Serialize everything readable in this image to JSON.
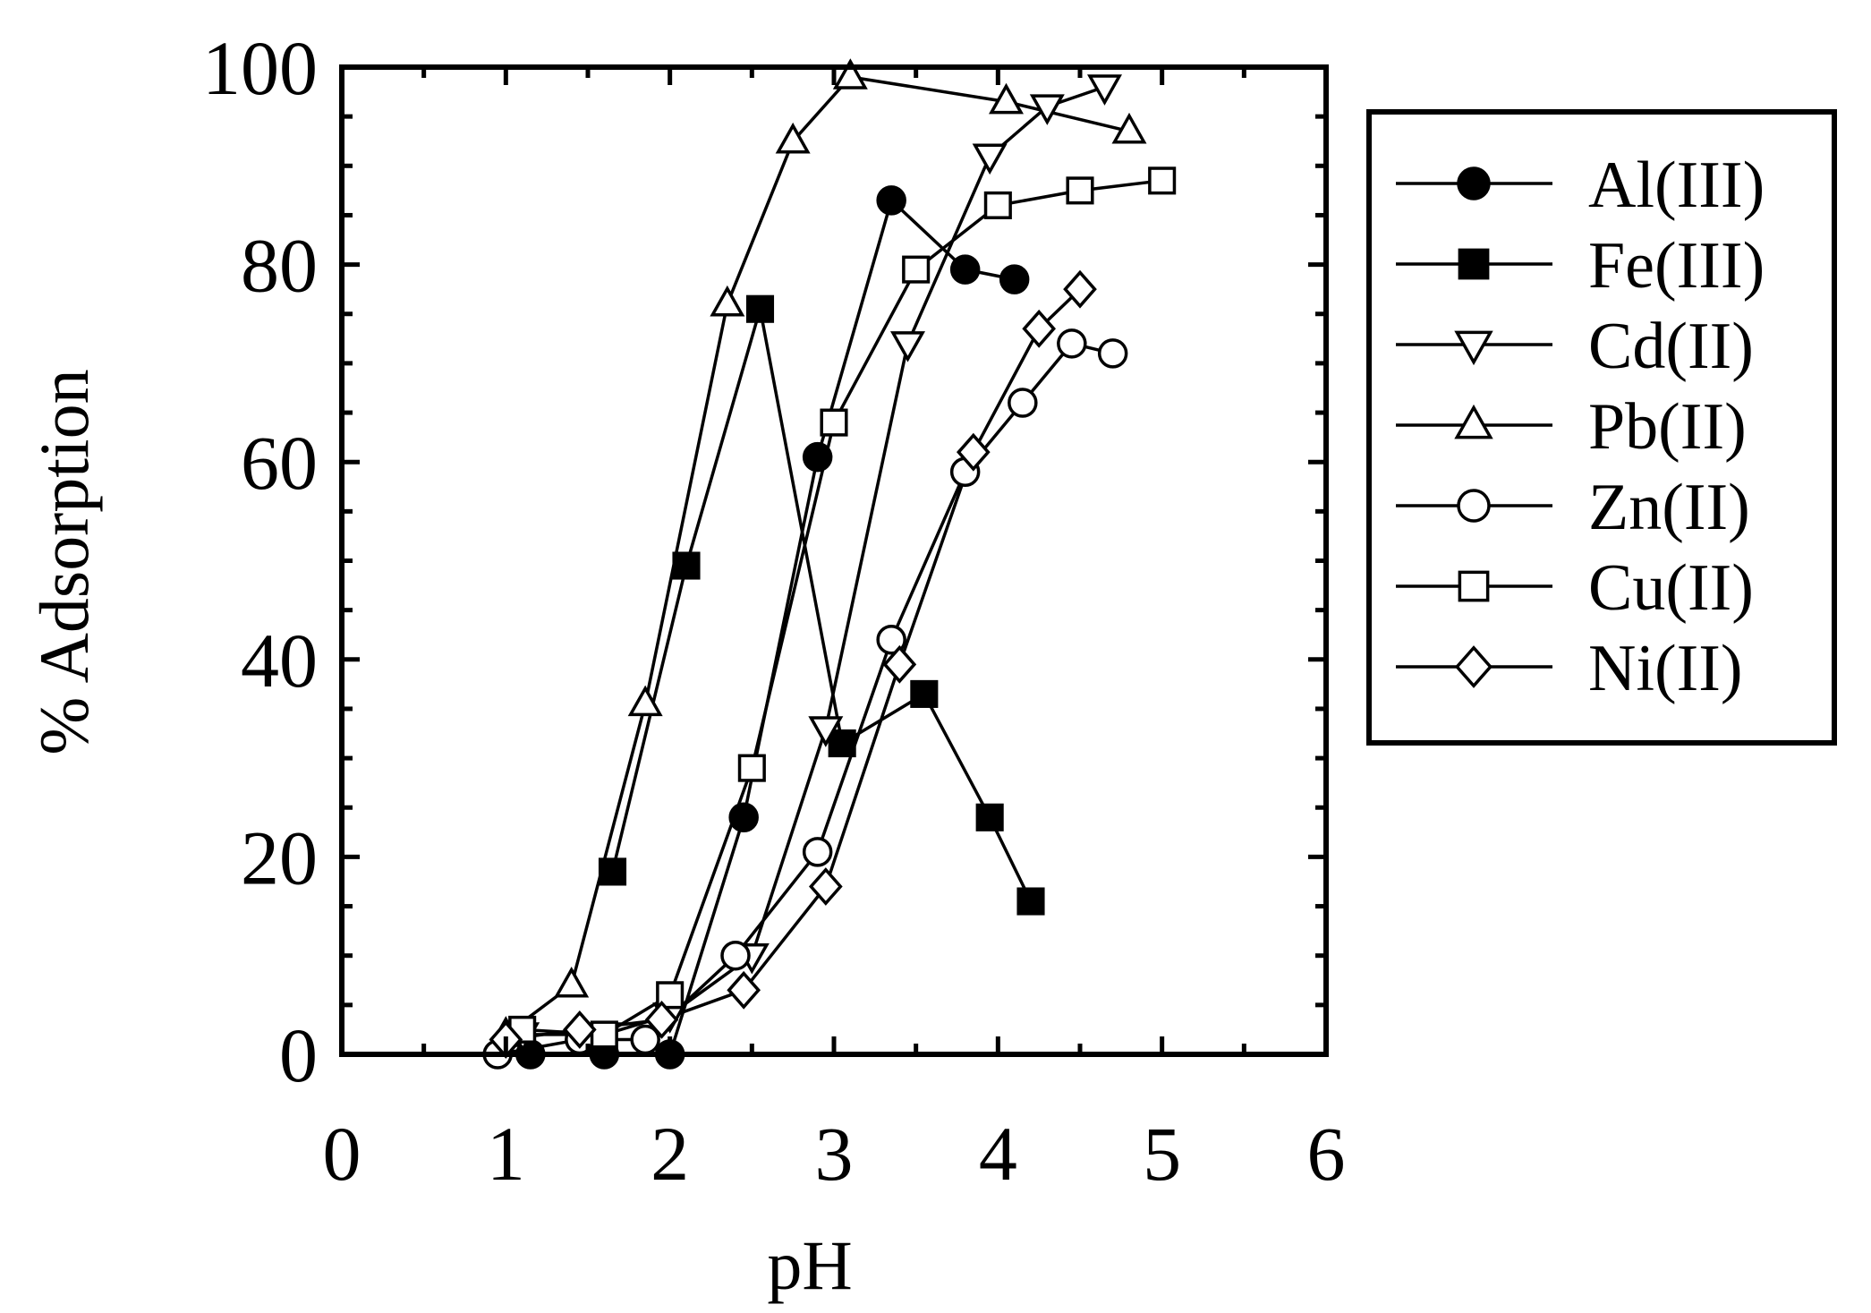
{
  "chart_data": {
    "type": "line",
    "xlabel": "pH",
    "ylabel": "% Adsorption",
    "xlim": [
      0,
      6
    ],
    "ylim": [
      0,
      100
    ],
    "xticks": [
      0,
      1,
      2,
      3,
      4,
      5,
      6
    ],
    "yticks": [
      0,
      20,
      40,
      60,
      80,
      100
    ],
    "grid": false,
    "legend_position": "top-right, outside plot",
    "series": [
      {
        "name": "Al(III)",
        "marker": "circle",
        "fill": "filled",
        "x": [
          1.15,
          1.6,
          2.0,
          2.45,
          2.9,
          3.35,
          3.8,
          4.1
        ],
        "y": [
          0,
          0,
          0,
          24,
          60.5,
          86.5,
          79.5,
          78.5
        ]
      },
      {
        "name": "Fe(III)",
        "marker": "square",
        "fill": "filled",
        "x": [
          1.65,
          2.1,
          2.55,
          3.05,
          3.55,
          3.95,
          4.2
        ],
        "y": [
          18.5,
          49.5,
          75.5,
          31.5,
          36.5,
          24,
          15.5
        ]
      },
      {
        "name": "Cd(II)",
        "marker": "triangle-down",
        "fill": "open",
        "x": [
          1.1,
          1.6,
          2.0,
          2.5,
          2.95,
          3.45,
          3.95,
          4.3,
          4.65
        ],
        "y": [
          2,
          2,
          4,
          10,
          33,
          72,
          91,
          96,
          98
        ]
      },
      {
        "name": "Pb(II)",
        "marker": "triangle-up",
        "fill": "open",
        "x": [
          1.0,
          1.4,
          1.85,
          2.35,
          2.75,
          3.1,
          4.05,
          4.8
        ],
        "y": [
          2,
          7,
          35.5,
          76,
          92.5,
          99,
          96.5,
          93.5
        ]
      },
      {
        "name": "Zn(II)",
        "marker": "circle",
        "fill": "open",
        "x": [
          0.95,
          1.45,
          1.85,
          2.4,
          2.9,
          3.35,
          3.8,
          4.15,
          4.45,
          4.7
        ],
        "y": [
          0,
          1.5,
          1.5,
          10,
          20.5,
          42,
          59,
          66,
          72,
          71
        ]
      },
      {
        "name": "Cu(II)",
        "marker": "square",
        "fill": "open",
        "x": [
          1.1,
          1.6,
          2.0,
          2.5,
          3.0,
          3.5,
          4.0,
          4.5,
          5.0
        ],
        "y": [
          2.5,
          2,
          6,
          29,
          64,
          79.5,
          86,
          87.5,
          88.5
        ]
      },
      {
        "name": "Ni(II)",
        "marker": "diamond",
        "fill": "open",
        "x": [
          1.0,
          1.45,
          1.95,
          2.45,
          2.95,
          3.4,
          3.85,
          4.25,
          4.5
        ],
        "y": [
          1.5,
          2.5,
          3.5,
          6.5,
          17,
          39.5,
          61,
          73.5,
          77.5
        ]
      }
    ]
  }
}
